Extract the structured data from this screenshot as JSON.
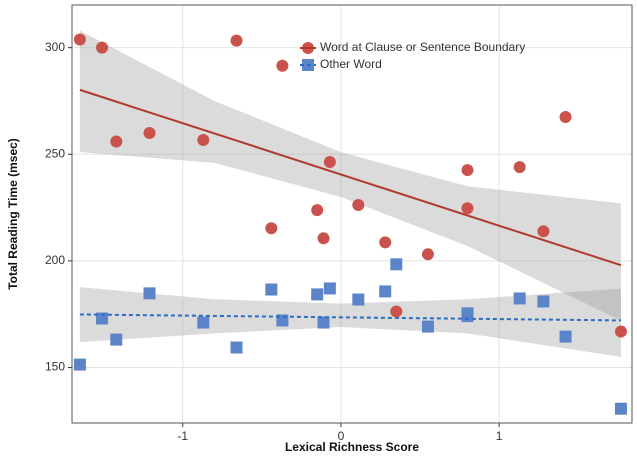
{
  "chart_data": {
    "type": "scatter",
    "x_label": "Lexical Richness Score",
    "y_label": "Total Reading Time (msec)",
    "xlim": [
      -1.7,
      1.84
    ],
    "ylim": [
      124,
      320
    ],
    "xticks": [
      -1,
      0,
      1
    ],
    "yticks": [
      150,
      200,
      250,
      300
    ],
    "grid": true,
    "series": [
      {
        "name": "Word at Clause or Sentence Boundary",
        "color": "#c9534c",
        "line_color": "#b03a2e",
        "marker": "circle",
        "line_style": "solid",
        "x": [
          -1.65,
          -1.51,
          -1.42,
          -1.21,
          -0.87,
          -0.66,
          -0.37,
          -0.44,
          -0.15,
          -0.11,
          -0.07,
          0.11,
          0.28,
          0.35,
          0.55,
          0.8,
          0.8,
          1.13,
          1.28,
          1.42,
          1.77
        ],
        "values": [
          303.8,
          300,
          256,
          260,
          256.7,
          303.3,
          291.5,
          215.3,
          223.8,
          210.6,
          246.4,
          226.2,
          208.7,
          176.3,
          203.1,
          242.6,
          224.7,
          244,
          213.9,
          267.5,
          166.9
        ],
        "fit": {
          "x": [
            -1.65,
            1.77
          ],
          "values": [
            280.2,
            198
          ]
        },
        "band": {
          "x": [
            -1.65,
            -0.8,
            0,
            0.8,
            1.77
          ],
          "lower": [
            251,
            246,
            230,
            207,
            172
          ],
          "upper": [
            308,
            275,
            251,
            235,
            227
          ]
        }
      },
      {
        "name": "Other Word",
        "color": "#5b84c9",
        "line_color": "#2b6cc4",
        "marker": "square",
        "line_style": "dashed",
        "x": [
          -1.65,
          -1.51,
          -1.42,
          -1.21,
          -0.87,
          -0.66,
          -0.44,
          -0.37,
          -0.15,
          -0.11,
          -0.07,
          0.11,
          0.28,
          0.35,
          0.55,
          0.8,
          0.8,
          1.13,
          1.28,
          1.42,
          1.77
        ],
        "values": [
          151.4,
          173,
          163.1,
          184.8,
          171.1,
          159.4,
          186.6,
          172.1,
          184.3,
          171.1,
          187.1,
          181.9,
          185.7,
          198.4,
          169.2,
          174.1,
          175.4,
          182.4,
          181,
          164.5,
          130.7
        ],
        "fit": {
          "x": [
            -1.65,
            1.77
          ],
          "values": [
            174.9,
            172.1
          ]
        },
        "band": {
          "x": [
            -1.65,
            -0.8,
            0,
            0.8,
            1.77
          ],
          "lower": [
            161.9,
            166,
            169,
            166,
            155
          ],
          "upper": [
            187.7,
            182,
            180,
            182,
            187
          ]
        }
      }
    ]
  }
}
